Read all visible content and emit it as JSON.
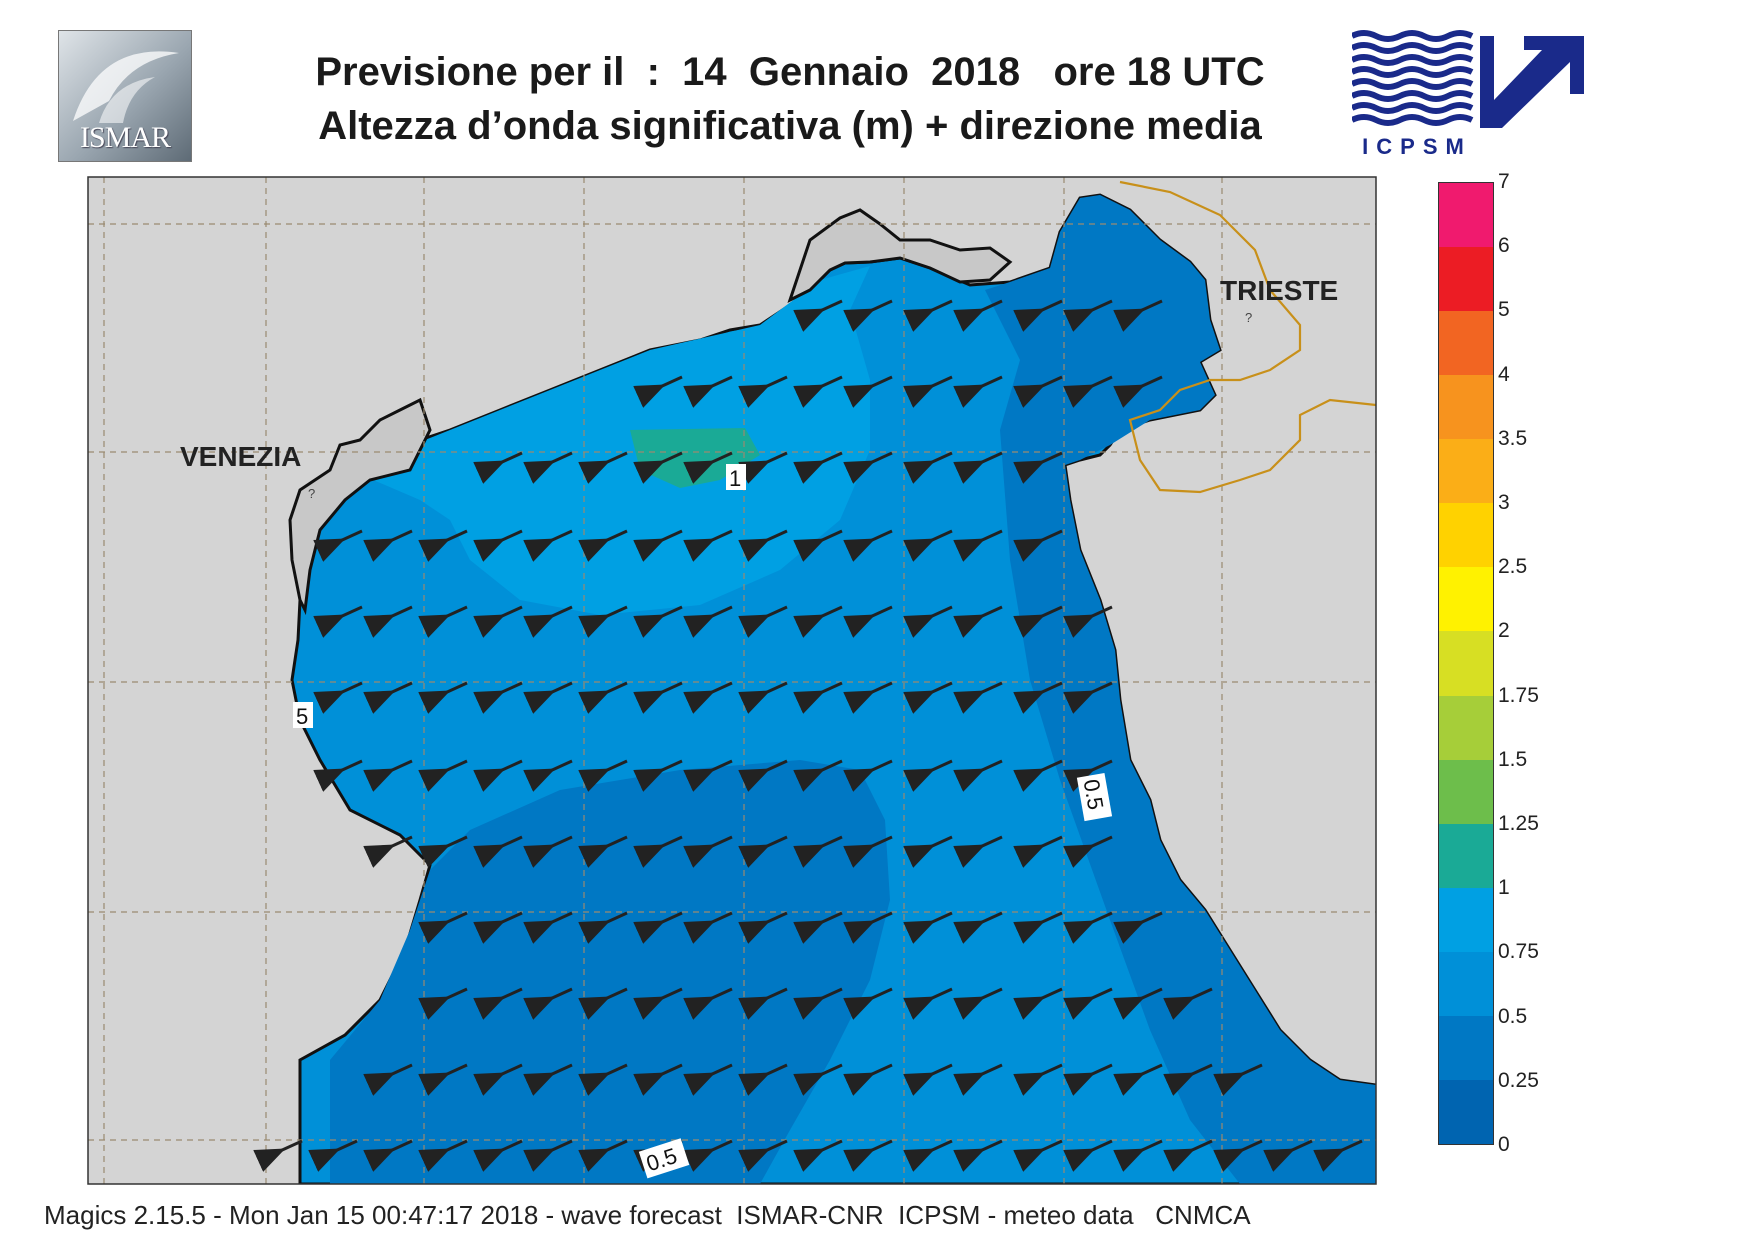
{
  "header": {
    "title_line1": "Previsione per il  :  14  Gennaio  2018   ore 18 UTC",
    "title_line2": "Altezza d’onda significativa (m) + direzione media"
  },
  "logos": {
    "left_text": "ISMAR",
    "right_text": "ICPSM",
    "right_color": "#1a2a8a"
  },
  "map": {
    "region": "Northern Adriatic Sea",
    "places": [
      {
        "name": "VENEZIA"
      },
      {
        "name": "TRIESTE"
      }
    ],
    "contour_labels": [
      "1",
      "5",
      "0.5",
      "0.5"
    ],
    "wave_direction": "toward west-southwest",
    "colors": {
      "land": "#d4d4d4",
      "coast_line": "#111111",
      "border_line": "#c8901a",
      "grid_line": "#9a8a70"
    }
  },
  "legend": {
    "unit": "m",
    "ticks": [
      "7",
      "6",
      "5",
      "4",
      "3.5",
      "3",
      "2.5",
      "2",
      "1.75",
      "1.5",
      "1.25",
      "1",
      "0.75",
      "0.5",
      "0.25",
      "0"
    ],
    "bins": [
      {
        "from": "6",
        "to": "7",
        "color": "#f01a6e"
      },
      {
        "from": "5",
        "to": "6",
        "color": "#ec1c24"
      },
      {
        "from": "4",
        "to": "5",
        "color": "#f26522"
      },
      {
        "from": "3.5",
        "to": "4",
        "color": "#f7931e"
      },
      {
        "from": "3",
        "to": "3.5",
        "color": "#fbae17"
      },
      {
        "from": "2.5",
        "to": "3",
        "color": "#ffd200"
      },
      {
        "from": "2",
        "to": "2.5",
        "color": "#fff200"
      },
      {
        "from": "1.75",
        "to": "2",
        "color": "#d7df23"
      },
      {
        "from": "1.5",
        "to": "1.75",
        "color": "#a6ce39"
      },
      {
        "from": "1.25",
        "to": "1.5",
        "color": "#6dbe4b"
      },
      {
        "from": "1",
        "to": "1.25",
        "color": "#1aaa96"
      },
      {
        "from": "0.75",
        "to": "1",
        "color": "#00a0e3"
      },
      {
        "from": "0.5",
        "to": "0.75",
        "color": "#0090d8"
      },
      {
        "from": "0.25",
        "to": "0.5",
        "color": "#0078c4"
      },
      {
        "from": "0",
        "to": "0.25",
        "color": "#0064b0"
      }
    ]
  },
  "footer": {
    "text": "Magics 2.15.5 - Mon Jan 15 00:47:17 2018 - wave forecast  ISMAR-CNR  ICPSM - meteo data   CNMCA"
  }
}
